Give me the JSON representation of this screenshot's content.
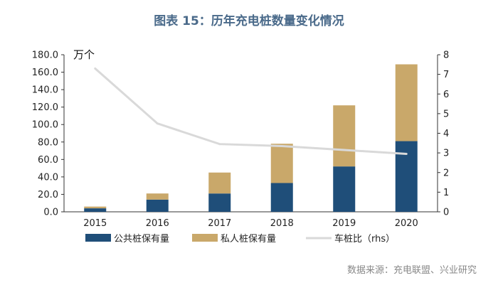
{
  "chart_data": {
    "type": "bar",
    "stacked": true,
    "title": "图表 15：历年充电桩数量变化情况",
    "unit_label": "万个",
    "categories": [
      "2015",
      "2016",
      "2017",
      "2018",
      "2019",
      "2020"
    ],
    "series": [
      {
        "name": "公共桩保有量",
        "type": "bar",
        "axis": "left",
        "color": "#1f4e79",
        "values": [
          4.0,
          14.0,
          21.0,
          33.0,
          52.0,
          81.0
        ]
      },
      {
        "name": "私人桩保有量",
        "type": "bar",
        "axis": "left",
        "color": "#c9a86a",
        "values": [
          2.0,
          7.0,
          24.0,
          45.0,
          70.0,
          88.0
        ]
      },
      {
        "name": "车桩比（rhs）",
        "type": "line",
        "axis": "right",
        "color": "#d9d9d9",
        "values": [
          7.3,
          4.5,
          3.45,
          3.35,
          3.15,
          2.95
        ]
      }
    ],
    "y_left": {
      "ylim": [
        0,
        180
      ],
      "ticks": [
        "0.0",
        "20.0",
        "40.0",
        "60.0",
        "80.0",
        "100.0",
        "120.0",
        "140.0",
        "160.0",
        "180.0"
      ]
    },
    "y_right": {
      "ylim": [
        0,
        8
      ],
      "ticks": [
        "0",
        "1",
        "2",
        "3",
        "4",
        "5",
        "6",
        "7",
        "8"
      ]
    },
    "legend": [
      "公共桩保有量",
      "私人桩保有量",
      "车桩比（rhs）"
    ],
    "legend_position": "bottom",
    "source": "数据来源：充电联盟、兴业研究"
  }
}
